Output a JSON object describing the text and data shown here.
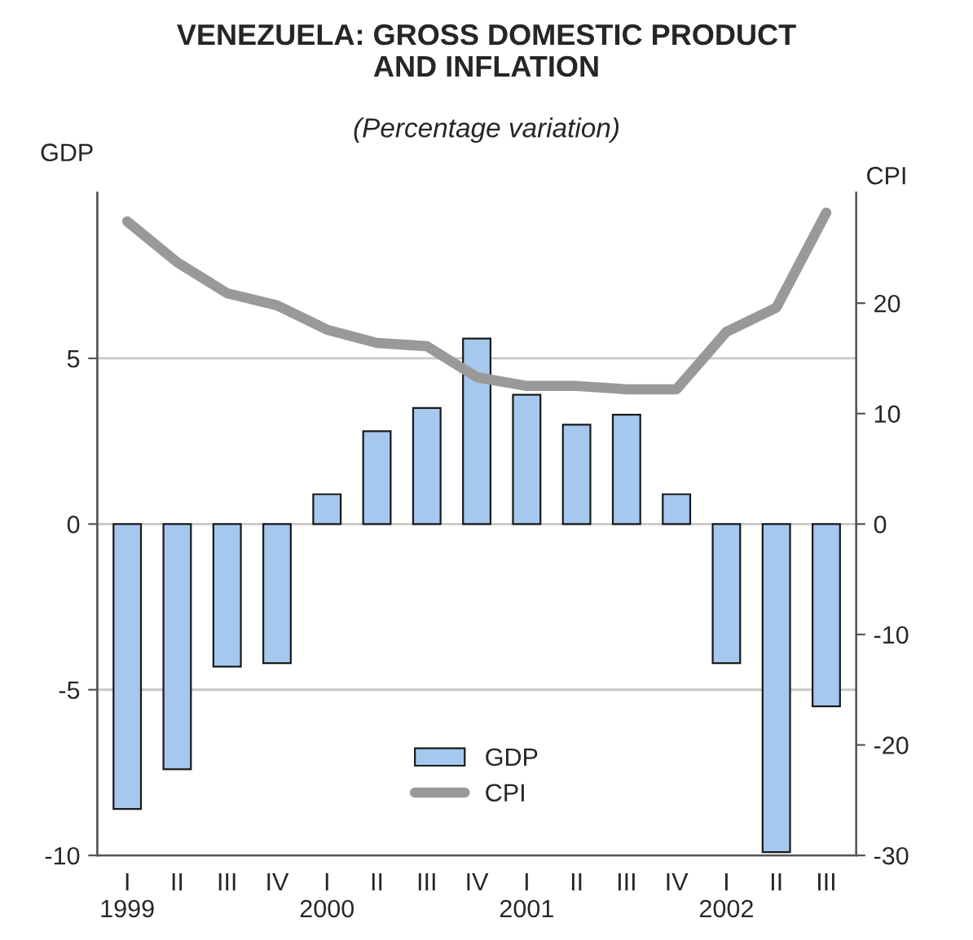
{
  "chart_data": {
    "type": "bar",
    "title": "VENEZUELA: GROSS DOMESTIC PRODUCT\nAND INFLATION",
    "subtitle": "(Percentage variation)",
    "ylabel": "GDP",
    "y2label": "CPI",
    "categories": [
      "I\n1999",
      "II",
      "III",
      "IV",
      "I\n2000",
      "II",
      "III",
      "IV",
      "I\n2001",
      "II",
      "III",
      "IV",
      "I\n2002",
      "II",
      "III"
    ],
    "series": [
      {
        "name": "GDP",
        "color": "#a6c8ef",
        "values": [
          -8.6,
          -7.4,
          -4.3,
          -4.2,
          0.9,
          2.8,
          3.5,
          5.6,
          3.9,
          3.0,
          3.3,
          0.9,
          -4.2,
          -9.9,
          -5.5
        ]
      },
      {
        "name": "CPI",
        "type": "line",
        "axis": "y2",
        "color": "#999999",
        "values": [
          27.4,
          23.7,
          20.9,
          19.8,
          17.6,
          16.4,
          16.1,
          13.3,
          12.5,
          12.5,
          12.2,
          12.2,
          17.4,
          19.6,
          28.2
        ]
      }
    ],
    "ylim": [
      -10,
      10
    ],
    "yticks": [
      -10,
      -5,
      0,
      5
    ],
    "y2lim": [
      -30,
      30
    ],
    "y2ticks": [
      -30,
      -20,
      -10,
      0,
      10,
      20
    ],
    "grid": "y",
    "legend": "bottom"
  }
}
